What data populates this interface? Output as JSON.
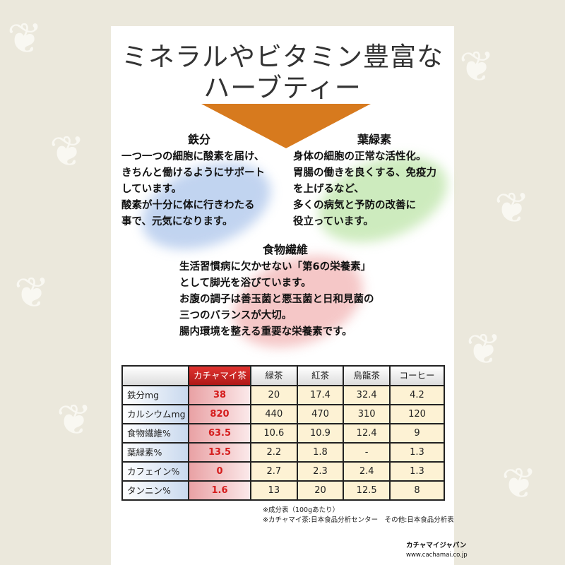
{
  "title": {
    "line1": "ミネラルやビタミン豊富な",
    "line2": "ハーブティー"
  },
  "sections": [
    {
      "heading": "鉄分",
      "lines": [
        "一つ一つの細胞に酸素を届け、",
        "きちんと働けるようにサポート",
        "しています。",
        "酸素が十分に体に行きわたる",
        "事で、元気になります。"
      ],
      "color": "#8fb0e0"
    },
    {
      "heading": "葉緑素",
      "lines": [
        "身体の細胞の正常な活性化。",
        "胃腸の働きを良くする、免疫力",
        "を上げるなど、",
        "多くの病気と予防の改善に",
        "役立っています。"
      ],
      "color": "#a9d98f"
    },
    {
      "heading": "食物繊維",
      "lines": [
        "生活習慣病に欠かせない「第6の栄養素」",
        "として脚光を浴びています。",
        "お腹の調子は善玉菌と悪玉菌と日和見菌の",
        "三つのバランスが大切。",
        "腸内環境を整える重要な栄養素です。"
      ],
      "color": "#e99a9a"
    }
  ],
  "table": {
    "headers": [
      "",
      "カチャマイ茶",
      "緑茶",
      "紅茶",
      "烏龍茶",
      "コーヒー"
    ],
    "rows": [
      [
        "鉄分mg",
        "38",
        "20",
        "17.4",
        "32.4",
        "4.2"
      ],
      [
        "カルシウムmg",
        "820",
        "440",
        "470",
        "310",
        "120"
      ],
      [
        "食物繊維%",
        "63.5",
        "10.6",
        "10.9",
        "12.4",
        "9"
      ],
      [
        "葉緑素%",
        "13.5",
        "2.2",
        "1.8",
        "-",
        "1.3"
      ],
      [
        "カフェイン%",
        "0",
        "2.7",
        "2.3",
        "2.4",
        "1.3"
      ],
      [
        "タンニン%",
        "1.6",
        "13",
        "20",
        "12.5",
        "8"
      ]
    ]
  },
  "notes": [
    "※成分表（100gあたり）",
    "※カチャマイ茶:日本食品分析センター　その他:日本食品分析表"
  ],
  "footer": {
    "brand": "カチャマイジャパン",
    "url": "www.cachamai.co.jp"
  }
}
